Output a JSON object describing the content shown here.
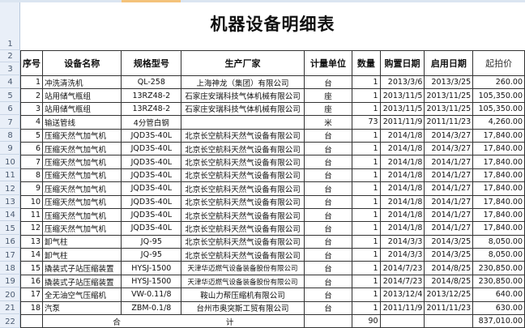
{
  "title": "机器设备明细表",
  "row_numbers": [
    "1",
    "2",
    "3",
    "4",
    "5",
    "6",
    "7",
    "8",
    "9",
    "10",
    "11",
    "12",
    "13",
    "14",
    "15",
    "16",
    "17",
    "18",
    "19",
    "20",
    "21",
    "22"
  ],
  "headers": [
    "序号",
    "设备名称",
    "规格型号",
    "生产厂家",
    "计量单位",
    "数量",
    "购置日期",
    "启用日期",
    "起拍价"
  ],
  "rows": [
    [
      "1",
      "冲洗清洗机",
      "QL-258",
      "上海神龙（集团）有限公司",
      "台",
      "1",
      "2013/3/6",
      "2013/3/25",
      "260.00"
    ],
    [
      "2",
      "站用储气瓶组",
      "13RZ48-2",
      "石家庄安瑞科技气体机械有限公司",
      "座",
      "1",
      "2013/11/5",
      "2013/11/25",
      "105,350.00"
    ],
    [
      "3",
      "站用储气瓶组",
      "13RZ48-2",
      "石家庄安瑞科技气体机械有限公司",
      "座",
      "1",
      "2013/11/5",
      "2013/11/25",
      "105,350.00"
    ],
    [
      "4",
      "输送管线",
      "4分管白钢",
      "",
      "米",
      "73",
      "2011/11/9",
      "2011/11/23",
      "4,260.00"
    ],
    [
      "5",
      "压缩天然气加气机",
      "JQD3S-40L",
      "北京长空航科天然气设备有限公司",
      "台",
      "1",
      "2014/1/8",
      "2014/3/27",
      "17,840.00"
    ],
    [
      "6",
      "压缩天然气加气机",
      "JQD3S-40L",
      "北京长空航科天然气设备有限公司",
      "台",
      "1",
      "2014/1/8",
      "2014/3/27",
      "17,840.00"
    ],
    [
      "7",
      "压缩天然气加气机",
      "JQD3S-40L",
      "北京长空航科天然气设备有限公司",
      "台",
      "1",
      "2014/1/8",
      "2014/1/27",
      "17,840.00"
    ],
    [
      "8",
      "压缩天然气加气机",
      "JQD3S-40L",
      "北京长空航科天然气设备有限公司",
      "台",
      "1",
      "2014/1/8",
      "2014/1/27",
      "17,840.00"
    ],
    [
      "9",
      "压缩天然气加气机",
      "JQD3S-40L",
      "北京长空航科天然气设备有限公司",
      "台",
      "1",
      "2014/1/8",
      "2014/1/27",
      "17,840.00"
    ],
    [
      "10",
      "压缩天然气加气机",
      "JQD3S-40L",
      "北京长空航科天然气设备有限公司",
      "台",
      "1",
      "2014/1/8",
      "2014/1/27",
      "17,840.00"
    ],
    [
      "11",
      "压缩天然气加气机",
      "JQD3S-40L",
      "北京长空航科天然气设备有限公司",
      "台",
      "1",
      "2014/1/8",
      "2014/1/27",
      "17,840.00"
    ],
    [
      "12",
      "压缩天然气加气机",
      "JQD3S-40L",
      "北京长空航科天然气设备有限公司",
      "台",
      "1",
      "2014/1/8",
      "2014/1/27",
      "17,840.00"
    ],
    [
      "13",
      "卸气柱",
      "JQ-95",
      "北京长空航科天然气设备有限公司",
      "台",
      "1",
      "2014/3/3",
      "2014/3/25",
      "8,050.00"
    ],
    [
      "14",
      "卸气柱",
      "JQ-95",
      "北京长空航科天然气设备有限公司",
      "台",
      "1",
      "2014/3/3",
      "2014/3/25",
      "8,050.00"
    ],
    [
      "15",
      "撬装式子站压缩装置",
      "HYSJ-1500",
      "天津华迈燃气设备装备股份有限公司",
      "台",
      "1",
      "2014/7/23",
      "2014/8/25",
      "230,850.00"
    ],
    [
      "16",
      "撬装式子站压缩装置",
      "HYSJ-1500",
      "天津华迈燃气设备装备股份有限公司",
      "台",
      "1",
      "2014/7/23",
      "2014/8/25",
      "230,850.00"
    ],
    [
      "17",
      "全无油空气压缩机",
      "VW-0.11/8",
      "鞍山力帮压缩机有限公司",
      "台",
      "1",
      "2013/12/4",
      "2013/12/25",
      "640.00"
    ],
    [
      "18",
      "汽泵",
      "ZBM-0.1/8",
      "台州市奥突斯工贸有限公司",
      "台",
      "1",
      "2011/11/9",
      "2011/11/23",
      "630.00"
    ]
  ],
  "total": {
    "label_a": "合",
    "label_b": "计",
    "quantity": "90",
    "price": "837,010.00"
  }
}
